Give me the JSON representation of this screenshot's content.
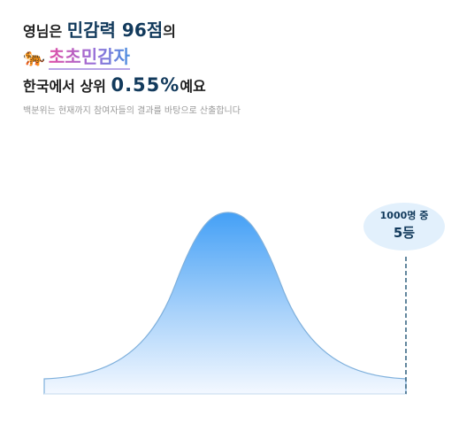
{
  "header": {
    "line1": {
      "prefix": "영님은",
      "score": "민감력 96점",
      "suffix": "의"
    },
    "line2": {
      "icon": "🐅",
      "type_name": "초초민감자"
    },
    "line3": {
      "prefix": "한국에서 상위",
      "percent": "0.55%",
      "suffix": "예요"
    },
    "note": "백분위는 현재까지 참여자들의 결과를 바탕으로 산출합니다"
  },
  "bubble": {
    "total": "1000명 중",
    "rank": "5등"
  }
}
